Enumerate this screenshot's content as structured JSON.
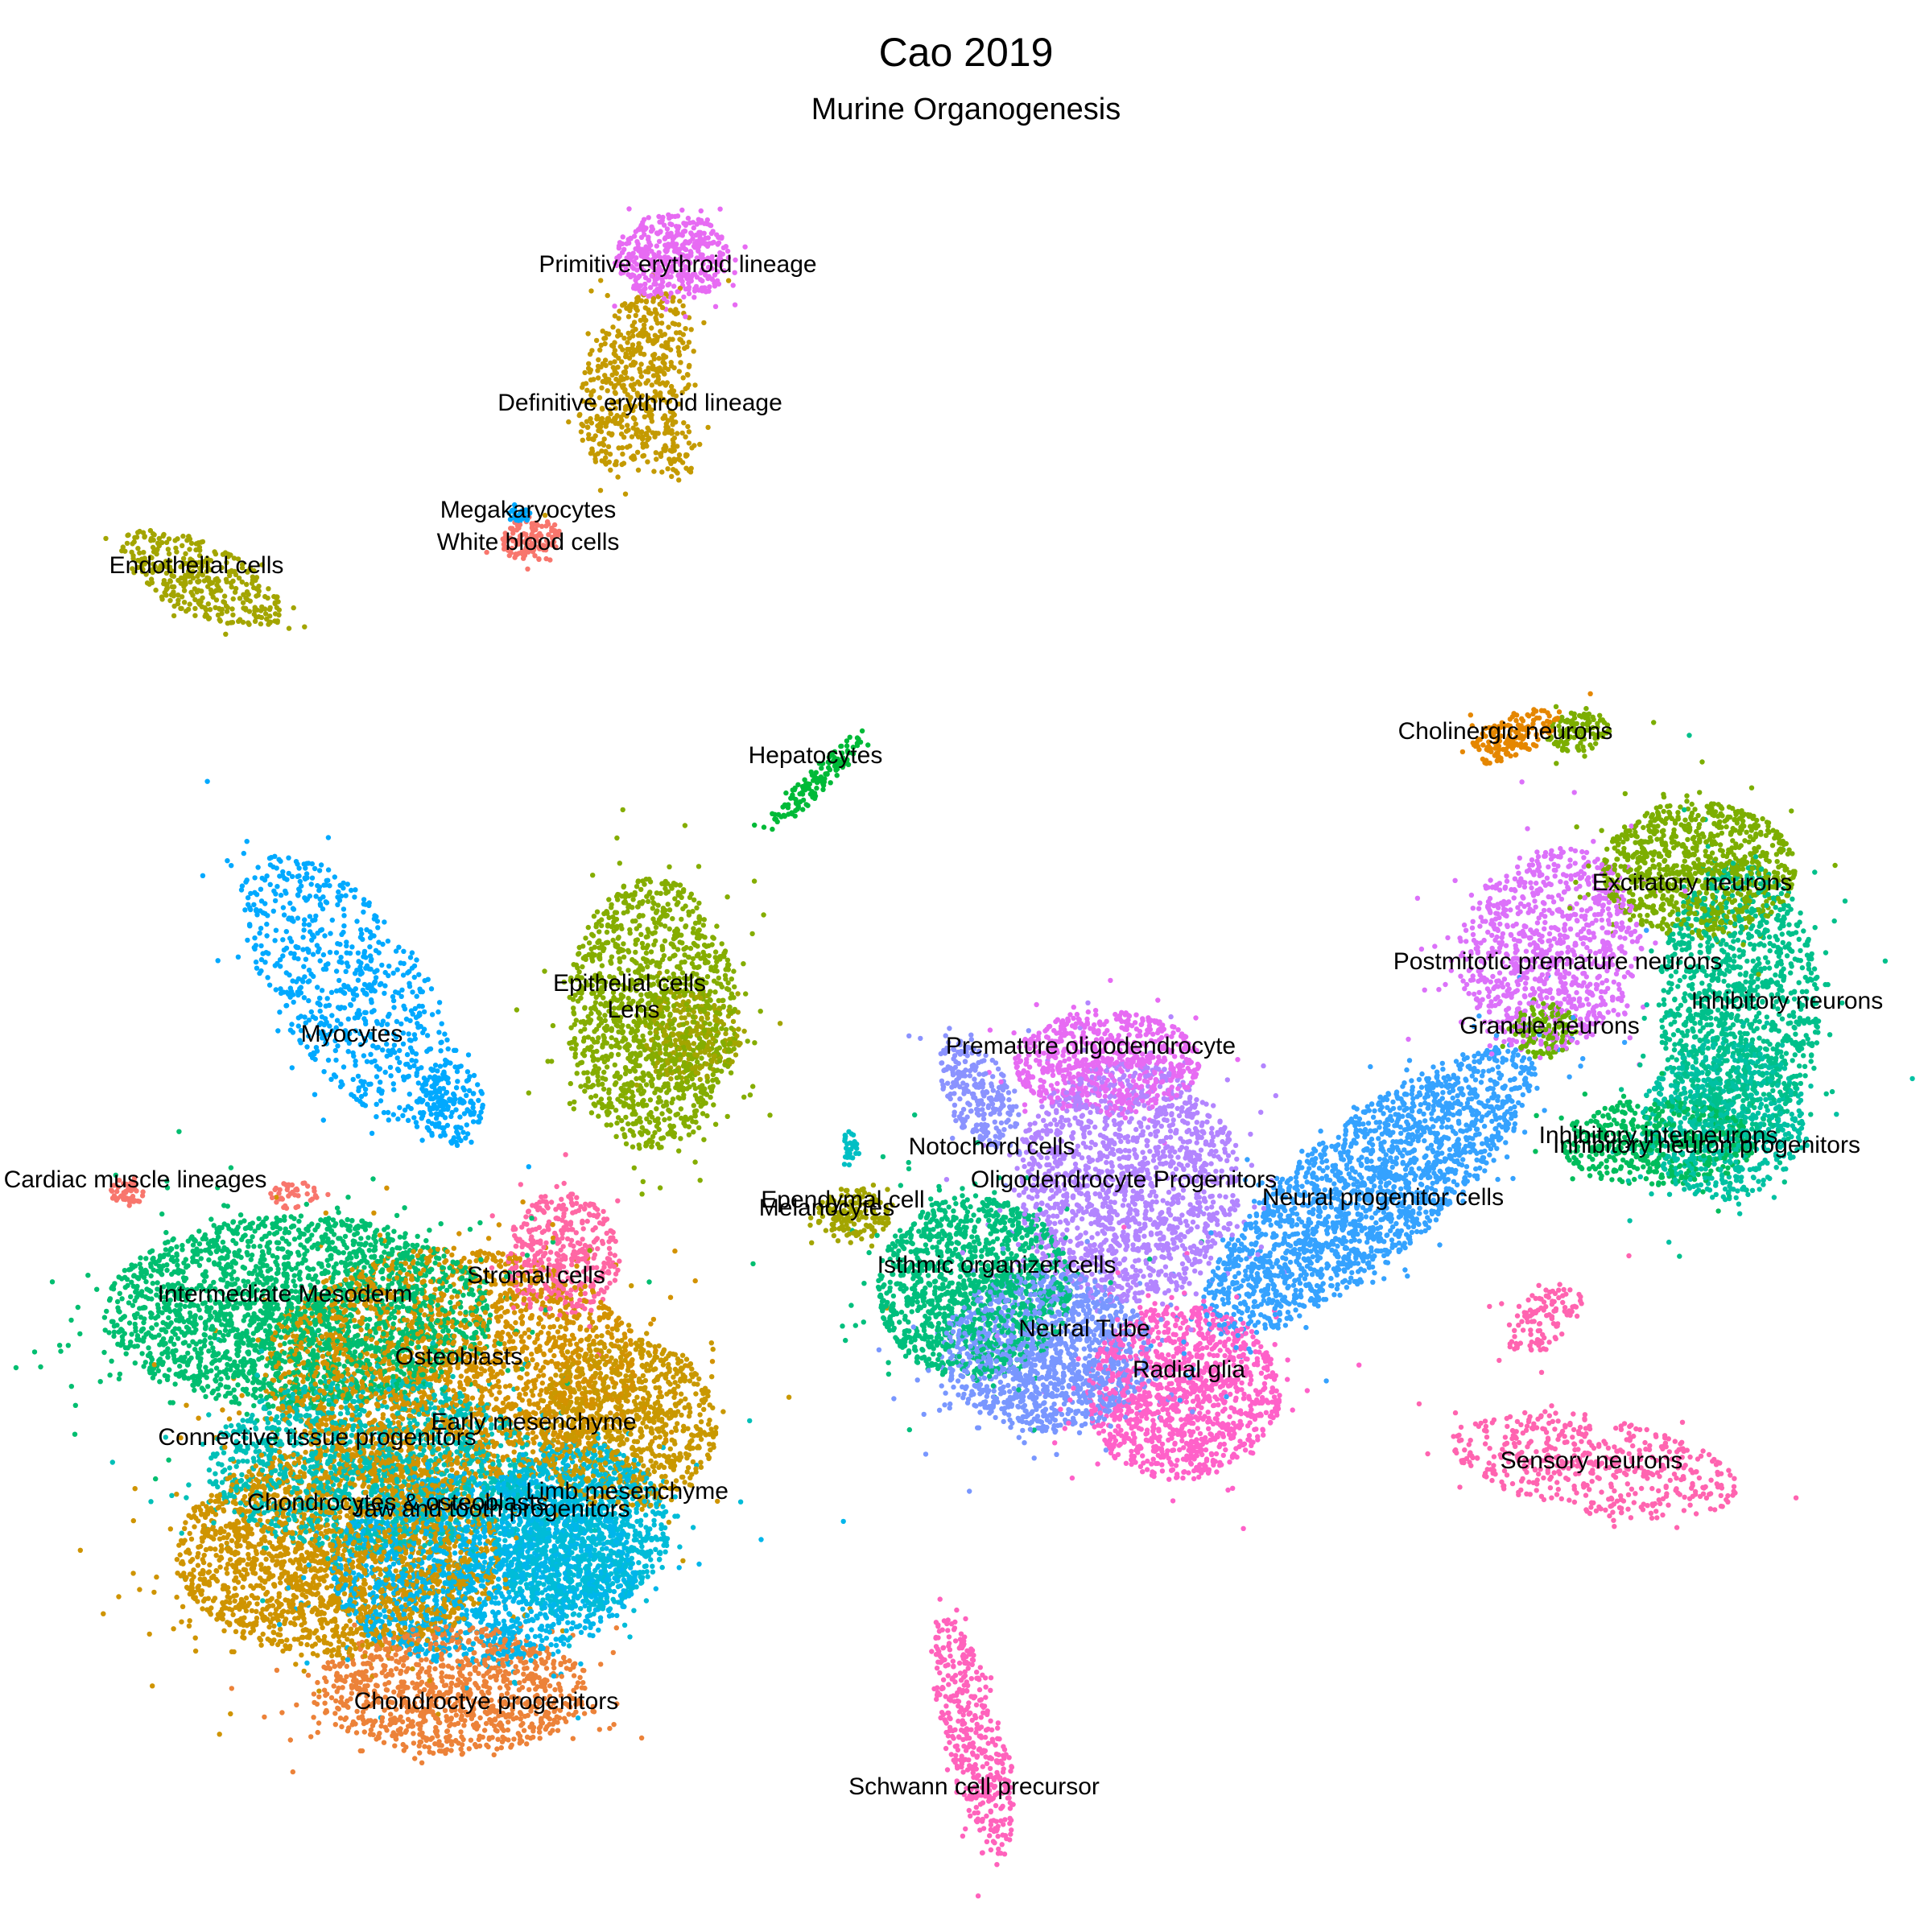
{
  "chart_data": {
    "type": "scatter",
    "title": "Cao 2019",
    "subtitle": "Murine Organogenesis",
    "xlabel": "",
    "ylabel": "",
    "grid": false,
    "legend": "none",
    "clusters": [
      {
        "name": "Primitive erythroid lineage",
        "color": "#e76bf3"
      },
      {
        "name": "Definitive erythroid lineage",
        "color": "#c49a00"
      },
      {
        "name": "Megakaryocytes",
        "color": "#00a9ff"
      },
      {
        "name": "White blood cells",
        "color": "#f8766d"
      },
      {
        "name": "Endothelial cells",
        "color": "#a3a500"
      },
      {
        "name": "Hepatocytes",
        "color": "#00ba38"
      },
      {
        "name": "Cholinergic neurons",
        "color": "#e58700"
      },
      {
        "name": "Excitatory neurons",
        "color": "#7cae00"
      },
      {
        "name": "Postmitotic premature neurons",
        "color": "#dc71fa"
      },
      {
        "name": "Inhibitory neurons",
        "color": "#00c08b"
      },
      {
        "name": "Granule neurons",
        "color": "#6bb100"
      },
      {
        "name": "Inhibitory interneurons",
        "color": "#00bd5c"
      },
      {
        "name": "Inhibitory neuron progenitors",
        "color": "#00c1a3"
      },
      {
        "name": "Neural progenitor cells",
        "color": "#35a2ff"
      },
      {
        "name": "Premature oligodendrocyte",
        "color": "#e76bf3"
      },
      {
        "name": "Notochord cells",
        "color": "#8b93ff"
      },
      {
        "name": "Oligodendrocyte Progenitors",
        "color": "#b385ff"
      },
      {
        "name": "Ependymal cell",
        "color": "#a3a500"
      },
      {
        "name": "Melanocytes",
        "color": "#00bfc4"
      },
      {
        "name": "Isthmic organizer cells",
        "color": "#00bf7d"
      },
      {
        "name": "Neural Tube",
        "color": "#7997ff"
      },
      {
        "name": "Radial glia",
        "color": "#ff61c9"
      },
      {
        "name": "Sensory neurons",
        "color": "#ff64b0"
      },
      {
        "name": "Schwann cell precursor",
        "color": "#ff62bc"
      },
      {
        "name": "Epithelial cells",
        "color": "#85ad00"
      },
      {
        "name": "Lens",
        "color": "#a3a500"
      },
      {
        "name": "Myocytes",
        "color": "#00a9ff"
      },
      {
        "name": "Cardiac muscle lineages",
        "color": "#f8766d"
      },
      {
        "name": "Intermediate Mesoderm",
        "color": "#00be70"
      },
      {
        "name": "Stromal cells",
        "color": "#ff67a4"
      },
      {
        "name": "Osteoblasts",
        "color": "#d39200"
      },
      {
        "name": "Early mesenchyme",
        "color": "#c99800"
      },
      {
        "name": "Connective tissue progenitors",
        "color": "#00c0b8"
      },
      {
        "name": "Limb mesenchyme",
        "color": "#00bcd8"
      },
      {
        "name": "Chondrocytes & osteoblasts",
        "color": "#cf9400"
      },
      {
        "name": "Jaw and tooth progenitors",
        "color": "#00b6eb"
      },
      {
        "name": "Chondroctye progenitors",
        "color": "#ec8239"
      }
    ],
    "labels": [
      {
        "text": "Primitive erythroid lineage"
      },
      {
        "text": "Definitive erythroid lineage"
      },
      {
        "text": "Megakaryocytes"
      },
      {
        "text": "White blood cells"
      },
      {
        "text": "Endothelial cells"
      },
      {
        "text": "Hepatocytes"
      },
      {
        "text": "Cholinergic neurons"
      },
      {
        "text": "Excitatory neurons"
      },
      {
        "text": "Postmitotic premature neurons"
      },
      {
        "text": "Inhibitory neurons"
      },
      {
        "text": "Granule neurons"
      },
      {
        "text": "Inhibitory interneurons"
      },
      {
        "text": "Inhibitory neuron progenitors"
      },
      {
        "text": "Neural progenitor cells"
      },
      {
        "text": "Premature oligodendrocyte"
      },
      {
        "text": "Notochord cells"
      },
      {
        "text": "Oligodendrocyte Progenitors"
      },
      {
        "text": "Ependymal cell"
      },
      {
        "text": "Melanocytes"
      },
      {
        "text": "Isthmic organizer cells"
      },
      {
        "text": "Neural Tube"
      },
      {
        "text": "Radial glia"
      },
      {
        "text": "Sensory neurons"
      },
      {
        "text": "Schwann cell precursor"
      },
      {
        "text": "Epithelial cells"
      },
      {
        "text": "Lens"
      },
      {
        "text": "Myocytes"
      },
      {
        "text": "Cardiac muscle lineages"
      },
      {
        "text": "Intermediate Mesoderm"
      },
      {
        "text": "Stromal cells"
      },
      {
        "text": "Osteoblasts"
      },
      {
        "text": "Early mesenchyme"
      },
      {
        "text": "Connective tissue progenitors"
      },
      {
        "text": "Limb mesenchyme"
      },
      {
        "text": "Chondrocytes & osteoblasts"
      },
      {
        "text": "Jaw and tooth progenitors"
      },
      {
        "text": "Chondroctye progenitors"
      }
    ]
  }
}
